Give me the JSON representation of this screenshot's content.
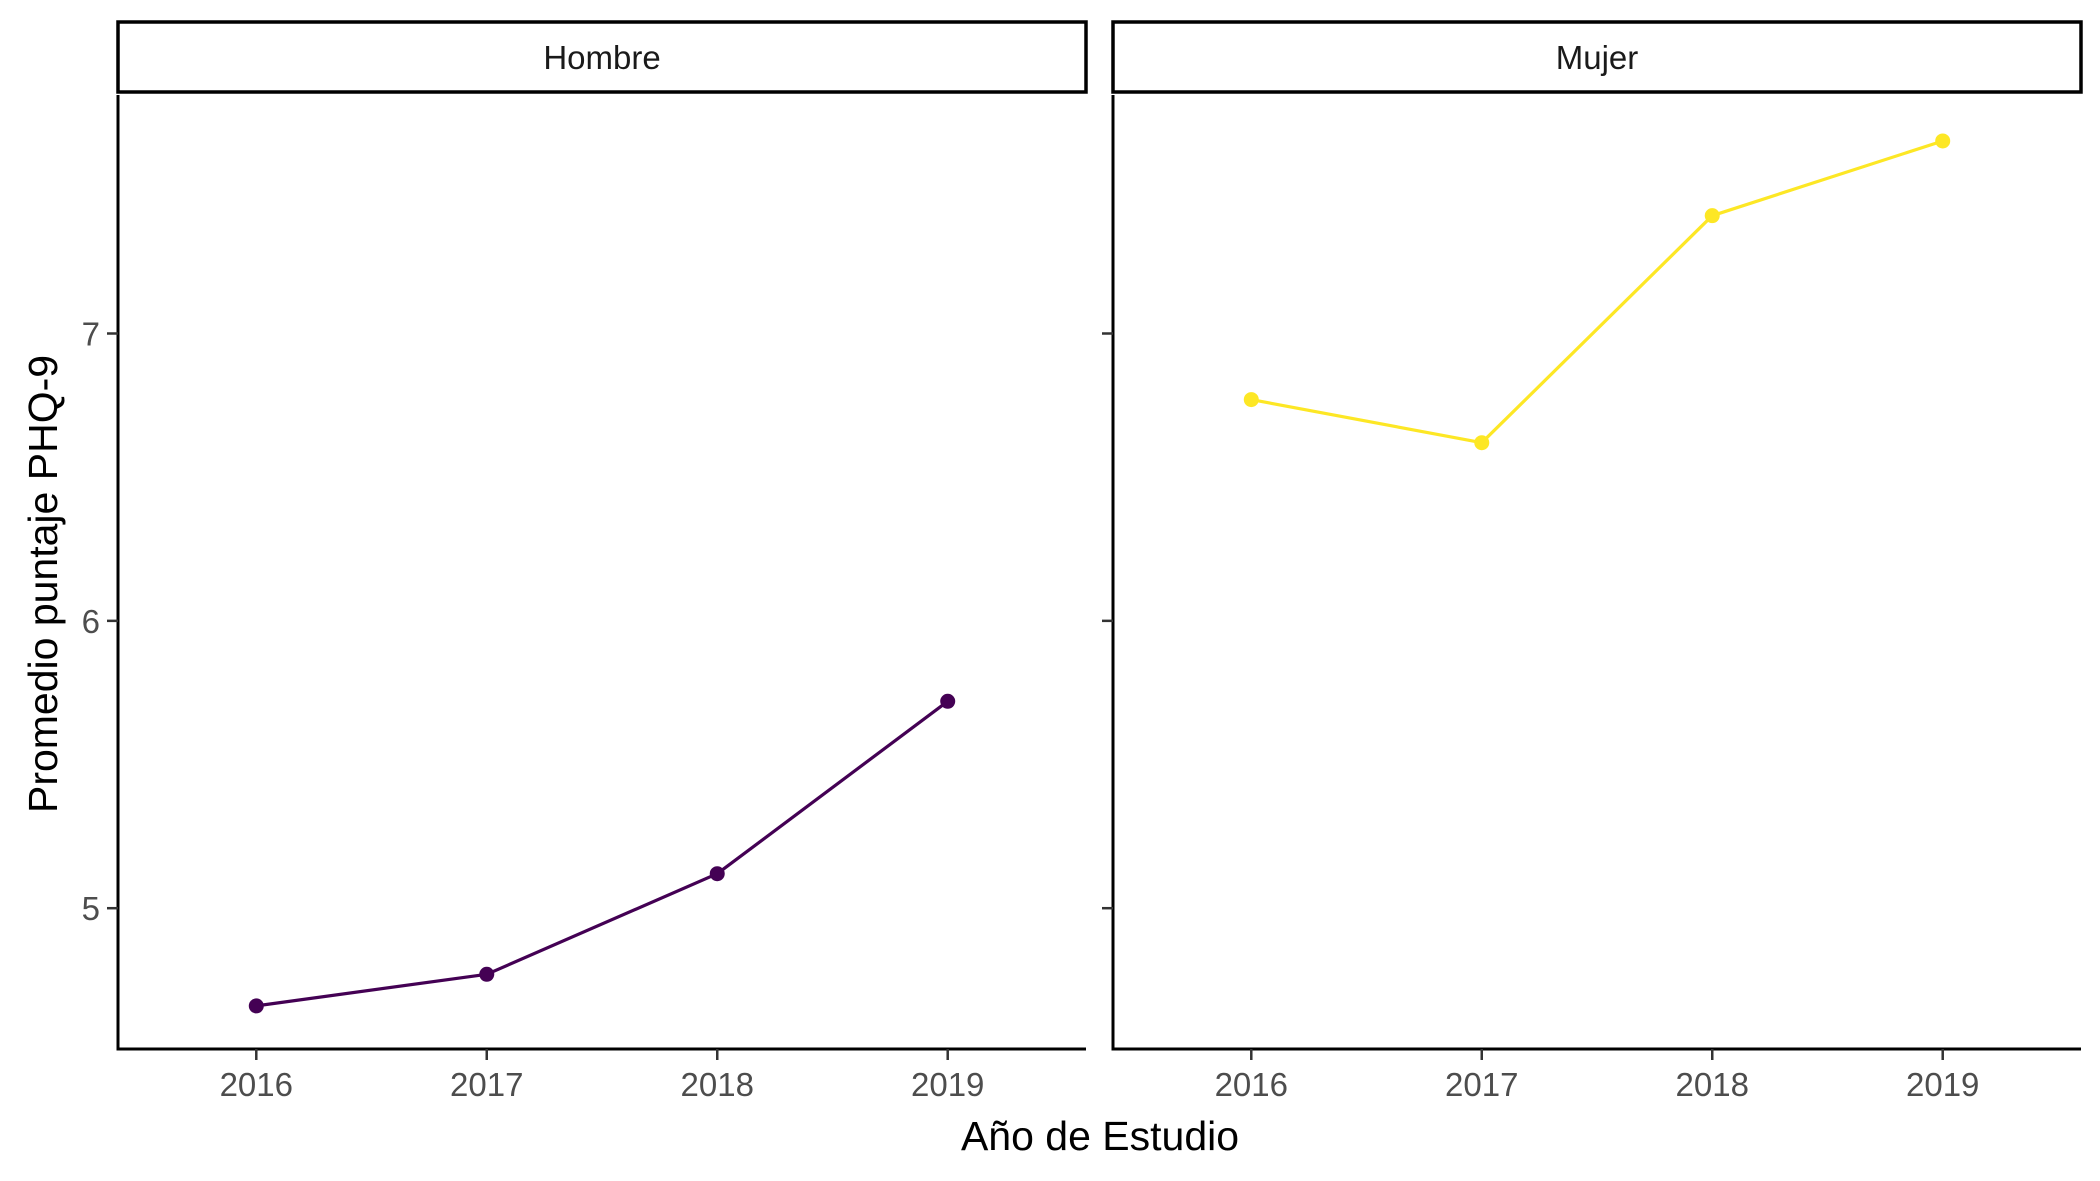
{
  "chart_data": {
    "type": "line",
    "facet_by": "sex",
    "facets": [
      {
        "label": "Hombre",
        "color": "#440154",
        "x": [
          2016,
          2017,
          2018,
          2019
        ],
        "values": [
          4.66,
          4.77,
          5.12,
          5.72
        ]
      },
      {
        "label": "Mujer",
        "color": "#FDE725",
        "x": [
          2016,
          2017,
          2018,
          2019
        ],
        "values": [
          6.77,
          6.62,
          7.41,
          7.67
        ]
      }
    ],
    "xlabel": "Año de Estudio",
    "ylabel": "Promedio puntaje PHQ-9",
    "x_ticks": [
      "2016",
      "2017",
      "2018",
      "2019"
    ],
    "y_ticks": [
      "5",
      "6",
      "7"
    ],
    "y_tick_values": [
      5,
      6,
      7
    ],
    "xlim": [
      2015.4,
      2019.6
    ],
    "ylim": [
      4.51,
      7.83
    ],
    "grid": false,
    "legend": "none",
    "line_markers": "points"
  }
}
